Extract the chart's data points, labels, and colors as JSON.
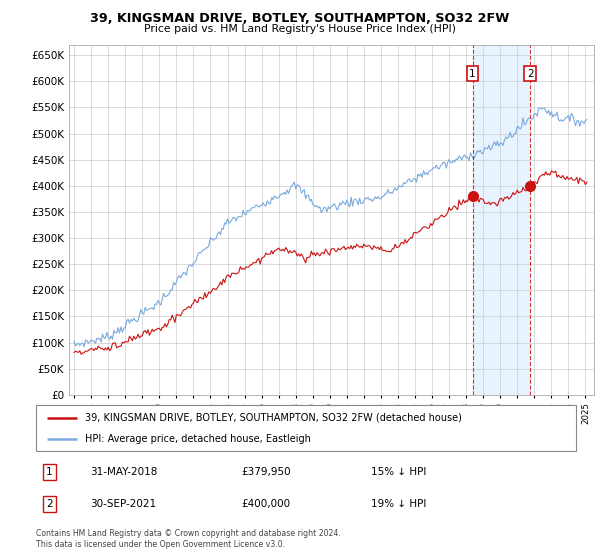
{
  "title": "39, KINGSMAN DRIVE, BOTLEY, SOUTHAMPTON, SO32 2FW",
  "subtitle": "Price paid vs. HM Land Registry's House Price Index (HPI)",
  "ytick_values": [
    0,
    50000,
    100000,
    150000,
    200000,
    250000,
    300000,
    350000,
    400000,
    450000,
    500000,
    550000,
    600000,
    650000
  ],
  "ylim": [
    0,
    670000
  ],
  "background_color": "#ffffff",
  "grid_color": "#cccccc",
  "hpi_color": "#7aaadd",
  "price_color": "#cc1111",
  "shade_color": "#ddeeff",
  "transaction1_x": 2018.375,
  "transaction2_x": 2021.75,
  "transaction1": {
    "label": "1",
    "date": "31-MAY-2018",
    "price": "£379,950",
    "vs_hpi": "15% ↓ HPI"
  },
  "transaction2": {
    "label": "2",
    "date": "30-SEP-2021",
    "price": "£400,000",
    "vs_hpi": "19% ↓ HPI"
  },
  "legend_line1": "39, KINGSMAN DRIVE, BOTLEY, SOUTHAMPTON, SO32 2FW (detached house)",
  "legend_line2": "HPI: Average price, detached house, Eastleigh",
  "footer": "Contains HM Land Registry data © Crown copyright and database right 2024.\nThis data is licensed under the Open Government Licence v3.0.",
  "xlim_left": 1994.7,
  "xlim_right": 2025.5,
  "marker1_price": 379950,
  "marker2_price": 400000
}
